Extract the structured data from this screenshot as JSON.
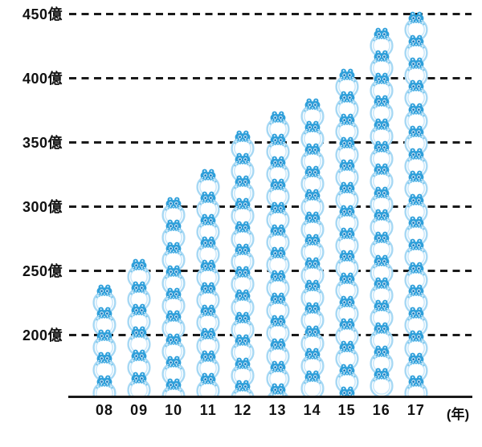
{
  "chart_data": {
    "type": "bar",
    "style": "pictograph",
    "icon": "coin-purse",
    "title": "",
    "categories": [
      "08",
      "09",
      "10",
      "11",
      "12",
      "13",
      "14",
      "15",
      "16",
      "17"
    ],
    "values": [
      240,
      260,
      308,
      330,
      360,
      375,
      385,
      408,
      440,
      452
    ],
    "unit": "億",
    "x_unit_label": "(年)",
    "xlabel": "",
    "ylabel": "",
    "y_ticks": [
      {
        "label": "450億",
        "value": 450
      },
      {
        "label": "400億",
        "value": 400
      },
      {
        "label": "350億",
        "value": 350
      },
      {
        "label": "300億",
        "value": 300
      },
      {
        "label": "250億",
        "value": 250
      },
      {
        "label": "200億",
        "value": 200
      }
    ],
    "ylim": [
      152,
      460
    ],
    "grid": "dashed-horizontal",
    "legend": "none"
  },
  "colors": {
    "background": "#ffffff",
    "purse_ring": "#a6d8f4",
    "purse_ring_inner": "#cbe8fa",
    "purse_clasp": "#2e9fda",
    "purse_rivet": "#1878bc",
    "purse_frill": "#7fc9ee",
    "grid_line": "#1a1a1a",
    "axis_line": "#1a1a1a",
    "text": "#111111"
  }
}
